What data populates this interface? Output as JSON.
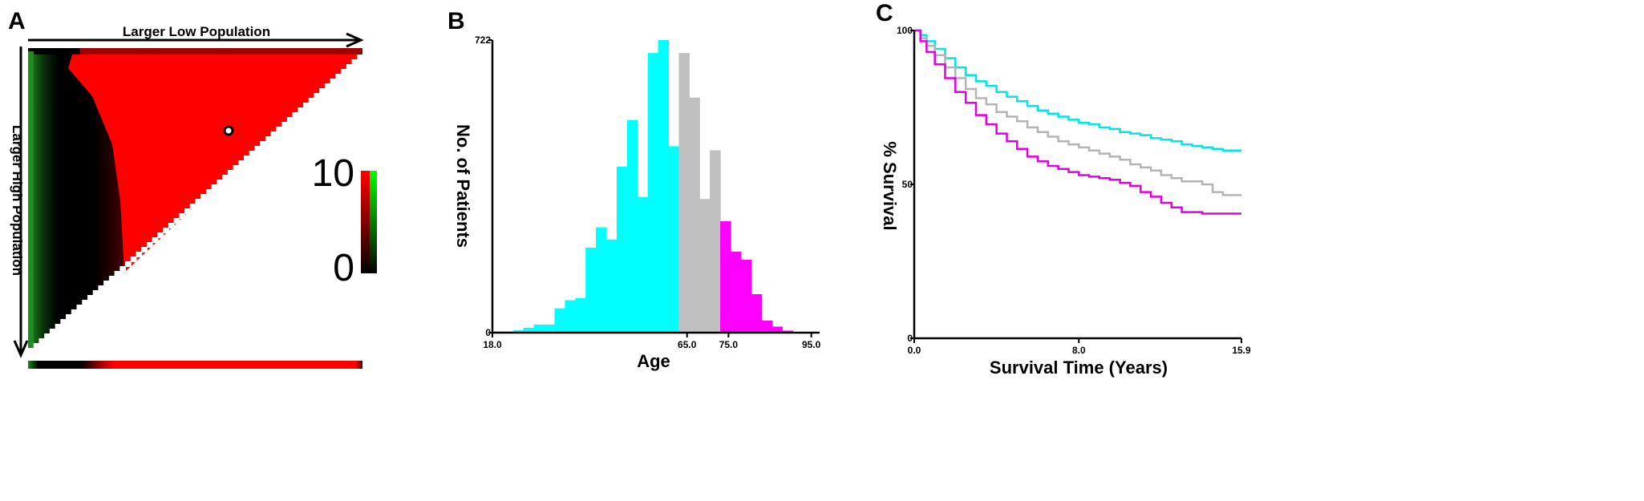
{
  "chart_data": [
    {
      "type": "heatmap",
      "panel_label": "A",
      "title_top": "Larger Low Population",
      "title_left": "Larger High Population",
      "colorbar": {
        "max_label": "10",
        "min_label": "0",
        "colors": [
          "#000000",
          "#ff0000",
          "#00ff00"
        ]
      },
      "marker": "white dot with black outline",
      "colors": {
        "high": "#ff0000",
        "low": "#000000",
        "alt": "#1a7a1a"
      }
    },
    {
      "type": "bar",
      "panel_label": "B",
      "xlabel": "Age",
      "ylabel": "No. of Patients",
      "x_ticks": [
        "18.0",
        "65.0",
        "75.0",
        "95.0"
      ],
      "y_ticks": [
        "0",
        "722"
      ],
      "xlim": [
        18,
        97
      ],
      "ylim": [
        0,
        722
      ],
      "bin_width": 2.5,
      "bins": [
        {
          "x0": 18.0,
          "value": 3,
          "group": "cyan"
        },
        {
          "x0": 20.5,
          "value": 3,
          "group": "cyan"
        },
        {
          "x0": 23.0,
          "value": 6,
          "group": "cyan"
        },
        {
          "x0": 25.5,
          "value": 12,
          "group": "cyan"
        },
        {
          "x0": 28.0,
          "value": 20,
          "group": "cyan"
        },
        {
          "x0": 30.5,
          "value": 20,
          "group": "cyan"
        },
        {
          "x0": 33.0,
          "value": 60,
          "group": "cyan"
        },
        {
          "x0": 35.5,
          "value": 80,
          "group": "cyan"
        },
        {
          "x0": 38.0,
          "value": 85,
          "group": "cyan"
        },
        {
          "x0": 40.5,
          "value": 210,
          "group": "cyan"
        },
        {
          "x0": 43.0,
          "value": 260,
          "group": "cyan"
        },
        {
          "x0": 45.5,
          "value": 230,
          "group": "cyan"
        },
        {
          "x0": 48.0,
          "value": 410,
          "group": "cyan"
        },
        {
          "x0": 50.5,
          "value": 525,
          "group": "cyan"
        },
        {
          "x0": 53.0,
          "value": 335,
          "group": "cyan"
        },
        {
          "x0": 55.5,
          "value": 690,
          "group": "cyan"
        },
        {
          "x0": 58.0,
          "value": 722,
          "group": "cyan"
        },
        {
          "x0": 60.5,
          "value": 460,
          "group": "cyan"
        },
        {
          "x0": 63.0,
          "value": 690,
          "group": "grey"
        },
        {
          "x0": 65.5,
          "value": 580,
          "group": "grey"
        },
        {
          "x0": 68.0,
          "value": 330,
          "group": "grey"
        },
        {
          "x0": 70.5,
          "value": 450,
          "group": "grey"
        },
        {
          "x0": 73.0,
          "value": 275,
          "group": "magenta"
        },
        {
          "x0": 75.5,
          "value": 200,
          "group": "magenta"
        },
        {
          "x0": 78.0,
          "value": 180,
          "group": "magenta"
        },
        {
          "x0": 80.5,
          "value": 95,
          "group": "magenta"
        },
        {
          "x0": 83.0,
          "value": 30,
          "group": "magenta"
        },
        {
          "x0": 85.5,
          "value": 15,
          "group": "magenta"
        },
        {
          "x0": 88.0,
          "value": 5,
          "group": "magenta"
        }
      ],
      "colors": {
        "cyan": "#00ffff",
        "grey": "#c0c0c0",
        "magenta": "#ff00ff"
      }
    },
    {
      "type": "line",
      "panel_label": "C",
      "xlabel": "Survival Time (Years)",
      "ylabel": "% Survival",
      "x_ticks": [
        "0.0",
        "8.0",
        "15.9"
      ],
      "y_ticks": [
        "0",
        "50",
        "100"
      ],
      "xlim": [
        0,
        15.9
      ],
      "ylim": [
        0,
        100
      ],
      "series": [
        {
          "color": "#00e5e5",
          "points": [
            [
              0,
              100
            ],
            [
              0.3,
              98.5
            ],
            [
              0.6,
              96.5
            ],
            [
              1,
              94
            ],
            [
              1.5,
              91
            ],
            [
              2,
              88
            ],
            [
              2.5,
              85.5
            ],
            [
              3,
              83.5
            ],
            [
              3.5,
              82
            ],
            [
              4,
              80
            ],
            [
              4.5,
              78.5
            ],
            [
              5,
              77
            ],
            [
              5.5,
              75.5
            ],
            [
              6,
              74
            ],
            [
              6.5,
              73
            ],
            [
              7,
              72
            ],
            [
              7.5,
              71
            ],
            [
              8,
              70
            ],
            [
              8.5,
              69.5
            ],
            [
              9,
              68.5
            ],
            [
              9.5,
              68
            ],
            [
              10,
              67
            ],
            [
              10.5,
              66.5
            ],
            [
              11,
              66
            ],
            [
              11.5,
              65
            ],
            [
              12,
              64.5
            ],
            [
              12.5,
              64
            ],
            [
              13,
              63
            ],
            [
              13.5,
              62.5
            ],
            [
              14,
              62
            ],
            [
              14.5,
              61.5
            ],
            [
              15,
              61
            ],
            [
              15.9,
              61
            ]
          ]
        },
        {
          "color": "#b4b4b4",
          "points": [
            [
              0,
              100
            ],
            [
              0.3,
              97.5
            ],
            [
              0.6,
              95
            ],
            [
              1,
              92
            ],
            [
              1.5,
              88
            ],
            [
              2,
              84.5
            ],
            [
              2.5,
              81
            ],
            [
              3,
              78
            ],
            [
              3.5,
              76
            ],
            [
              4,
              73.5
            ],
            [
              4.5,
              72
            ],
            [
              5,
              70.5
            ],
            [
              5.5,
              68.5
            ],
            [
              6,
              67
            ],
            [
              6.5,
              65.5
            ],
            [
              7,
              64
            ],
            [
              7.5,
              63
            ],
            [
              8,
              62
            ],
            [
              8.5,
              61
            ],
            [
              9,
              60
            ],
            [
              9.5,
              59
            ],
            [
              10,
              58
            ],
            [
              10.5,
              56.5
            ],
            [
              11,
              55.5
            ],
            [
              11.5,
              54.5
            ],
            [
              12,
              53
            ],
            [
              12.5,
              52
            ],
            [
              13,
              51
            ],
            [
              13.5,
              51
            ],
            [
              14,
              50
            ],
            [
              14.5,
              47.5
            ],
            [
              15,
              46.5
            ],
            [
              15.9,
              46.5
            ]
          ]
        },
        {
          "color": "#e000e0",
          "points": [
            [
              0,
              100
            ],
            [
              0.3,
              96.5
            ],
            [
              0.6,
              93
            ],
            [
              1,
              89
            ],
            [
              1.5,
              84.5
            ],
            [
              2,
              80
            ],
            [
              2.5,
              76.5
            ],
            [
              3,
              72.5
            ],
            [
              3.5,
              69.5
            ],
            [
              4,
              66.5
            ],
            [
              4.5,
              64
            ],
            [
              5,
              61.5
            ],
            [
              5.5,
              59
            ],
            [
              6,
              57.5
            ],
            [
              6.5,
              56
            ],
            [
              7,
              55
            ],
            [
              7.5,
              54
            ],
            [
              8,
              53
            ],
            [
              8.5,
              52.5
            ],
            [
              9,
              52
            ],
            [
              9.5,
              51.5
            ],
            [
              10,
              50.5
            ],
            [
              10.5,
              49.5
            ],
            [
              11,
              47.5
            ],
            [
              11.5,
              46
            ],
            [
              12,
              44
            ],
            [
              12.5,
              42.5
            ],
            [
              13,
              41
            ],
            [
              13.5,
              41
            ],
            [
              14,
              40.5
            ],
            [
              14.5,
              40.5
            ],
            [
              15,
              40.5
            ],
            [
              15.9,
              40.5
            ]
          ]
        }
      ]
    }
  ]
}
